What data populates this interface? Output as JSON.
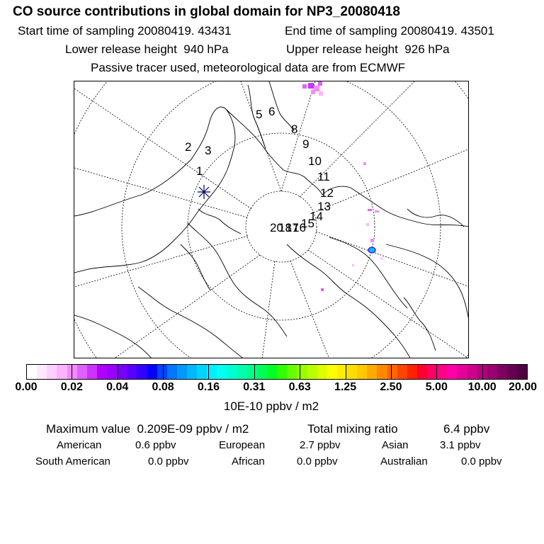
{
  "header": {
    "title": "CO  source contributions in global domain for NP3_20080418",
    "start_label": "Start time of sampling",
    "start_value": "20080419. 43431",
    "end_label": "End time of sampling",
    "end_value": "20080419. 43501",
    "lower_label": "Lower release height",
    "lower_value": "940 hPa",
    "upper_label": "Upper release height",
    "upper_value": "926 hPa",
    "tracer_note": "Passive tracer used, meteorological data are from ECMWF"
  },
  "map": {
    "trajectory_labels": [
      "1",
      "2",
      "3",
      "5",
      "6",
      "8",
      "9",
      "10",
      "11",
      "12",
      "13",
      "14",
      "15",
      "20",
      "18",
      "17",
      "16"
    ],
    "release_marker": "release-point-star"
  },
  "colorbar": {
    "unit": "10E-10 ppbv / m2",
    "ticks": [
      "0.00",
      "0.02",
      "0.04",
      "0.08",
      "0.16",
      "0.31",
      "0.63",
      "1.25",
      "2.50",
      "5.00",
      "10.00",
      "20.00"
    ],
    "colors": [
      "#ffffff",
      "#ffe8ff",
      "#ffcfff",
      "#ffb3ff",
      "#f28bff",
      "#e060ff",
      "#cc33ff",
      "#b000ff",
      "#9900ff",
      "#7a00ff",
      "#5a00ff",
      "#3300ff",
      "#0000ff",
      "#0044ff",
      "#0077ff",
      "#0099ff",
      "#00b8ff",
      "#00d4ff",
      "#00f0ff",
      "#00ffee",
      "#00ffcc",
      "#00ffaa",
      "#00ff88",
      "#00ff55",
      "#00ff22",
      "#33ff00",
      "#66ff00",
      "#99ff00",
      "#bbff00",
      "#ddff00",
      "#ffff00",
      "#ffee00",
      "#ffdd00",
      "#ffc800",
      "#ffaa00",
      "#ff8800",
      "#ff6600",
      "#ff4400",
      "#ff2200",
      "#ff0033",
      "#ff0066",
      "#ff0088",
      "#ff00aa",
      "#e6009a",
      "#cc008c",
      "#b3007e",
      "#990070",
      "#800060",
      "#660050",
      "#4d0040"
    ]
  },
  "summary": {
    "max_label": "Maximum value",
    "max_value": "0.209E-09 ppbv / m2",
    "total_label": "Total mixing ratio",
    "total_value": "6.4 ppbv",
    "regions": [
      {
        "name": "American",
        "value": "0.6 ppbv"
      },
      {
        "name": "European",
        "value": "2.7 ppbv"
      },
      {
        "name": "Asian",
        "value": "3.1 ppbv"
      },
      {
        "name": "South American",
        "value": "0.0 ppbv"
      },
      {
        "name": "African",
        "value": "0.0 ppbv"
      },
      {
        "name": "Australian",
        "value": "0.0 ppbv"
      }
    ]
  }
}
